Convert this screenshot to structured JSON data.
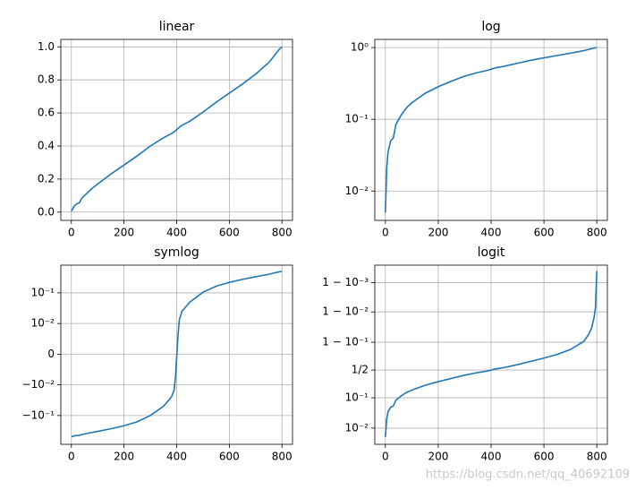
{
  "chart_data": [
    {
      "type": "line",
      "title": "linear",
      "yscale": "linear",
      "grid": true,
      "color": "#1f77b4",
      "x": [
        0,
        5,
        10,
        20,
        30,
        40,
        60,
        80,
        100,
        150,
        200,
        250,
        300,
        350,
        380,
        390,
        395,
        400,
        405,
        410,
        420,
        450,
        500,
        550,
        600,
        650,
        700,
        750,
        770,
        780,
        790,
        795,
        800
      ],
      "values": [
        0.005,
        0.02,
        0.035,
        0.05,
        0.055,
        0.085,
        0.115,
        0.145,
        0.17,
        0.23,
        0.285,
        0.34,
        0.4,
        0.45,
        0.475,
        0.485,
        0.492,
        0.499,
        0.506,
        0.513,
        0.525,
        0.55,
        0.605,
        0.665,
        0.72,
        0.775,
        0.835,
        0.905,
        0.945,
        0.965,
        0.985,
        0.993,
        0.9996
      ],
      "xlim": [
        -40,
        840
      ],
      "xticks": [
        0,
        200,
        400,
        600,
        800
      ],
      "ylim": [
        -0.05,
        1.045
      ],
      "yticks": [
        {
          "value": 0,
          "label": "0.0"
        },
        {
          "value": 0.2,
          "label": "0.2"
        },
        {
          "value": 0.4,
          "label": "0.4"
        },
        {
          "value": 0.6,
          "label": "0.6"
        },
        {
          "value": 0.8,
          "label": "0.8"
        },
        {
          "value": 1,
          "label": "1.0"
        }
      ]
    },
    {
      "type": "line",
      "title": "log",
      "yscale": "log",
      "grid": true,
      "color": "#1f77b4",
      "x": [
        0,
        5,
        10,
        20,
        30,
        40,
        60,
        80,
        100,
        150,
        200,
        250,
        300,
        350,
        380,
        390,
        395,
        400,
        405,
        410,
        420,
        450,
        500,
        550,
        600,
        650,
        700,
        750,
        770,
        780,
        790,
        795,
        800
      ],
      "values": [
        0.005,
        0.02,
        0.035,
        0.05,
        0.055,
        0.085,
        0.115,
        0.145,
        0.17,
        0.23,
        0.285,
        0.34,
        0.4,
        0.45,
        0.475,
        0.485,
        0.492,
        0.499,
        0.506,
        0.513,
        0.525,
        0.55,
        0.605,
        0.665,
        0.72,
        0.775,
        0.835,
        0.905,
        0.945,
        0.965,
        0.985,
        0.993,
        0.9996
      ],
      "xlim": [
        -40,
        840
      ],
      "xticks": [
        0,
        200,
        400,
        600,
        800
      ],
      "ylim": [
        0.0039,
        1.3
      ],
      "yticks": [
        {
          "value": 0.01,
          "label": "10⁻²"
        },
        {
          "value": 0.1,
          "label": "10⁻¹"
        },
        {
          "value": 1,
          "label": "10⁰"
        }
      ]
    },
    {
      "type": "line",
      "title": "symlog",
      "yscale": "symlog",
      "linthresh": 0.01,
      "grid": true,
      "color": "#1f77b4",
      "x": [
        0,
        5,
        10,
        20,
        30,
        40,
        60,
        80,
        100,
        150,
        200,
        250,
        300,
        350,
        380,
        390,
        395,
        400,
        405,
        410,
        420,
        450,
        500,
        550,
        600,
        650,
        700,
        750,
        770,
        780,
        790,
        795,
        800
      ],
      "values": [
        -0.495,
        -0.48,
        -0.465,
        -0.45,
        -0.445,
        -0.415,
        -0.385,
        -0.355,
        -0.33,
        -0.27,
        -0.215,
        -0.16,
        -0.1,
        -0.05,
        -0.025,
        -0.015,
        -0.008,
        -0.001,
        0.006,
        0.013,
        0.025,
        0.05,
        0.105,
        0.165,
        0.22,
        0.275,
        0.335,
        0.405,
        0.445,
        0.465,
        0.485,
        0.493,
        0.4996
      ],
      "xlim": [
        -40,
        840
      ],
      "xticks": [
        0,
        200,
        400,
        600,
        800
      ],
      "ylim": [
        -0.87,
        0.8
      ],
      "yticks": [
        {
          "value": -0.1,
          "label": "−10⁻¹"
        },
        {
          "value": -0.01,
          "label": "−10⁻²"
        },
        0,
        {
          "value": 0.01,
          "label": "10⁻²"
        },
        {
          "value": 0.1,
          "label": "10⁻¹"
        }
      ]
    },
    {
      "type": "line",
      "title": "logit",
      "yscale": "logit",
      "grid": true,
      "color": "#1f77b4",
      "x": [
        0,
        5,
        10,
        20,
        30,
        40,
        60,
        80,
        100,
        150,
        200,
        250,
        300,
        350,
        380,
        390,
        395,
        400,
        405,
        410,
        420,
        450,
        500,
        550,
        600,
        650,
        700,
        750,
        770,
        780,
        790,
        795,
        800
      ],
      "values": [
        0.005,
        0.02,
        0.035,
        0.05,
        0.055,
        0.085,
        0.115,
        0.145,
        0.17,
        0.23,
        0.285,
        0.34,
        0.4,
        0.45,
        0.475,
        0.485,
        0.492,
        0.499,
        0.506,
        0.513,
        0.525,
        0.55,
        0.605,
        0.665,
        0.72,
        0.775,
        0.835,
        0.905,
        0.945,
        0.965,
        0.985,
        0.993,
        0.9996
      ],
      "xlim": [
        -40,
        840
      ],
      "xticks": [
        0,
        200,
        400,
        600,
        800
      ],
      "ylim": [
        0.0028,
        0.99975
      ],
      "yticks": [
        {
          "value": 0.01,
          "label": "10⁻²"
        },
        {
          "value": 0.1,
          "label": "10⁻¹"
        },
        {
          "value": 0.5,
          "label": "1/2"
        },
        {
          "value": 0.9,
          "label": "1 − 10⁻¹"
        },
        {
          "value": 0.99,
          "label": "1 − 10⁻²"
        },
        {
          "value": 0.999,
          "label": "1 − 10⁻³"
        }
      ]
    }
  ],
  "watermark": "https://blog.csdn.net/qq_40692109"
}
